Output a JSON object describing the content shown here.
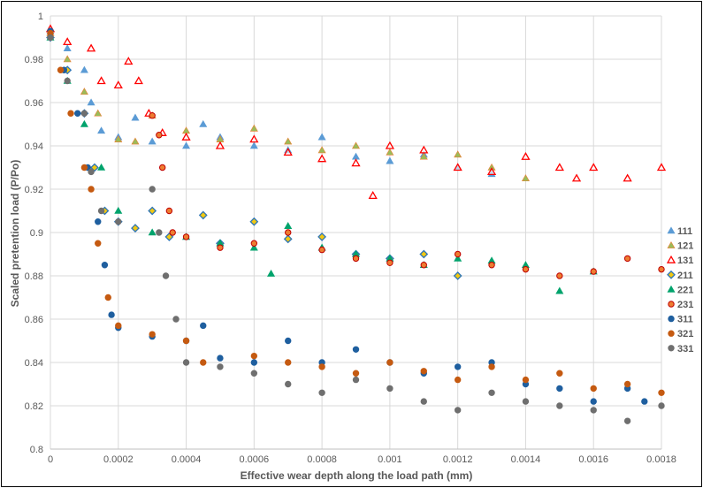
{
  "chart_data": {
    "type": "scatter",
    "xlabel": "Effective wear depth along the load path (mm)",
    "ylabel": "Scaled pretention load (P/Po)",
    "xlim": [
      0,
      0.0018
    ],
    "ylim": [
      0.8,
      1
    ],
    "xticks": [
      "0",
      "0.0002",
      "0.0004",
      "0.0006",
      "0.0008",
      "0.001",
      "0.0012",
      "0.0014",
      "0.0016",
      "0.0018"
    ],
    "yticks": [
      "0.8",
      "0.82",
      "0.84",
      "0.86",
      "0.88",
      "0.9",
      "0.92",
      "0.94",
      "0.96",
      "0.98",
      "1"
    ],
    "grid": true,
    "legend": "right",
    "series": [
      {
        "name": "111",
        "marker": "triangle",
        "color": "#5b9bd5",
        "points": [
          [
            0,
            0.993
          ],
          [
            5e-05,
            0.985
          ],
          [
            0.0001,
            0.975
          ],
          [
            0.00012,
            0.96
          ],
          [
            0.00015,
            0.947
          ],
          [
            0.0002,
            0.944
          ],
          [
            0.00025,
            0.953
          ],
          [
            0.0003,
            0.942
          ],
          [
            0.0004,
            0.94
          ],
          [
            0.00045,
            0.95
          ],
          [
            0.0005,
            0.944
          ],
          [
            0.0006,
            0.94
          ],
          [
            0.0007,
            0.938
          ],
          [
            0.0008,
            0.944
          ],
          [
            0.0009,
            0.935
          ],
          [
            0.001,
            0.933
          ],
          [
            0.0011,
            0.936
          ],
          [
            0.0012,
            0.93
          ],
          [
            0.0013,
            0.927
          ]
        ]
      },
      {
        "name": "121",
        "marker": "triangle",
        "color": "#9bbb59",
        "stroke": "#ed7d31",
        "points": [
          [
            0,
            0.992
          ],
          [
            5e-05,
            0.98
          ],
          [
            0.0001,
            0.965
          ],
          [
            0.00014,
            0.955
          ],
          [
            0.0002,
            0.943
          ],
          [
            0.00025,
            0.942
          ],
          [
            0.0003,
            0.954
          ],
          [
            0.0004,
            0.947
          ],
          [
            0.0005,
            0.943
          ],
          [
            0.0006,
            0.948
          ],
          [
            0.0007,
            0.942
          ],
          [
            0.0008,
            0.938
          ],
          [
            0.0009,
            0.94
          ],
          [
            0.001,
            0.937
          ],
          [
            0.0011,
            0.935
          ],
          [
            0.0012,
            0.936
          ],
          [
            0.0013,
            0.93
          ],
          [
            0.0014,
            0.925
          ]
        ]
      },
      {
        "name": "131",
        "marker": "triangle-open",
        "color": "#ff0000",
        "points": [
          [
            0,
            0.994
          ],
          [
            5e-05,
            0.988
          ],
          [
            0.00012,
            0.985
          ],
          [
            0.00015,
            0.97
          ],
          [
            0.0002,
            0.968
          ],
          [
            0.00023,
            0.979
          ],
          [
            0.00026,
            0.97
          ],
          [
            0.00029,
            0.955
          ],
          [
            0.00033,
            0.946
          ],
          [
            0.0004,
            0.944
          ],
          [
            0.0005,
            0.94
          ],
          [
            0.0006,
            0.943
          ],
          [
            0.0007,
            0.937
          ],
          [
            0.0008,
            0.934
          ],
          [
            0.0009,
            0.932
          ],
          [
            0.00095,
            0.917
          ],
          [
            0.001,
            0.94
          ],
          [
            0.0011,
            0.938
          ],
          [
            0.0012,
            0.93
          ],
          [
            0.0013,
            0.928
          ],
          [
            0.0014,
            0.935
          ],
          [
            0.0015,
            0.93
          ],
          [
            0.00155,
            0.925
          ],
          [
            0.0016,
            0.93
          ],
          [
            0.0017,
            0.925
          ],
          [
            0.0018,
            0.93
          ]
        ]
      },
      {
        "name": "211",
        "marker": "diamond",
        "color": "#f2c811",
        "stroke": "#2e75b6",
        "points": [
          [
            0,
            0.99
          ],
          [
            5e-05,
            0.975
          ],
          [
            0.0001,
            0.955
          ],
          [
            0.00013,
            0.93
          ],
          [
            0.00016,
            0.91
          ],
          [
            0.0002,
            0.905
          ],
          [
            0.00025,
            0.902
          ],
          [
            0.0003,
            0.91
          ],
          [
            0.00035,
            0.898
          ],
          [
            0.00045,
            0.908
          ],
          [
            0.0005,
            0.895
          ],
          [
            0.0006,
            0.905
          ],
          [
            0.0007,
            0.897
          ],
          [
            0.0008,
            0.898
          ],
          [
            0.0009,
            0.89
          ],
          [
            0.001,
            0.888
          ],
          [
            0.0011,
            0.89
          ],
          [
            0.0012,
            0.88
          ]
        ]
      },
      {
        "name": "221",
        "marker": "triangle",
        "color": "#00a36c",
        "points": [
          [
            0,
            0.99
          ],
          [
            5e-05,
            0.97
          ],
          [
            0.0001,
            0.95
          ],
          [
            0.00015,
            0.93
          ],
          [
            0.0002,
            0.91
          ],
          [
            0.0003,
            0.9
          ],
          [
            0.0004,
            0.898
          ],
          [
            0.0005,
            0.895
          ],
          [
            0.0006,
            0.893
          ],
          [
            0.00065,
            0.881
          ],
          [
            0.0007,
            0.903
          ],
          [
            0.0008,
            0.893
          ],
          [
            0.0009,
            0.89
          ],
          [
            0.001,
            0.888
          ],
          [
            0.0011,
            0.885
          ],
          [
            0.0012,
            0.888
          ],
          [
            0.0013,
            0.887
          ],
          [
            0.0014,
            0.885
          ],
          [
            0.0015,
            0.873
          ],
          [
            0.0016,
            0.882
          ]
        ]
      },
      {
        "name": "231",
        "marker": "circle",
        "color": "#ed7d31",
        "stroke": "#c00000",
        "points": [
          [
            0.0003,
            0.954
          ],
          [
            0.00032,
            0.945
          ],
          [
            0.00033,
            0.93
          ],
          [
            0.00035,
            0.91
          ],
          [
            0.00036,
            0.9
          ],
          [
            0.0004,
            0.898
          ],
          [
            0.0005,
            0.893
          ],
          [
            0.0006,
            0.895
          ],
          [
            0.0007,
            0.9
          ],
          [
            0.0008,
            0.892
          ],
          [
            0.0009,
            0.888
          ],
          [
            0.001,
            0.886
          ],
          [
            0.0011,
            0.885
          ],
          [
            0.0012,
            0.89
          ],
          [
            0.0013,
            0.885
          ],
          [
            0.0014,
            0.883
          ],
          [
            0.0015,
            0.88
          ],
          [
            0.0016,
            0.882
          ],
          [
            0.0017,
            0.888
          ],
          [
            0.0018,
            0.883
          ]
        ]
      },
      {
        "name": "311",
        "marker": "circle",
        "color": "#1f5f9f",
        "points": [
          [
            0,
            0.993
          ],
          [
            4e-05,
            0.975
          ],
          [
            8e-05,
            0.955
          ],
          [
            0.00011,
            0.93
          ],
          [
            0.00014,
            0.905
          ],
          [
            0.00016,
            0.885
          ],
          [
            0.00018,
            0.862
          ],
          [
            0.0002,
            0.856
          ],
          [
            0.0003,
            0.852
          ],
          [
            0.0004,
            0.85
          ],
          [
            0.00045,
            0.857
          ],
          [
            0.0005,
            0.842
          ],
          [
            0.0006,
            0.84
          ],
          [
            0.0007,
            0.85
          ],
          [
            0.0008,
            0.84
          ],
          [
            0.0009,
            0.846
          ],
          [
            0.001,
            0.84
          ],
          [
            0.0011,
            0.835
          ],
          [
            0.0012,
            0.838
          ],
          [
            0.0013,
            0.84
          ],
          [
            0.0014,
            0.83
          ],
          [
            0.0015,
            0.828
          ],
          [
            0.0016,
            0.822
          ],
          [
            0.0017,
            0.828
          ],
          [
            0.00175,
            0.822
          ]
        ]
      },
      {
        "name": "321",
        "marker": "circle",
        "color": "#c55a11",
        "points": [
          [
            0,
            0.992
          ],
          [
            3e-05,
            0.975
          ],
          [
            6e-05,
            0.955
          ],
          [
            0.0001,
            0.93
          ],
          [
            0.00012,
            0.92
          ],
          [
            0.00014,
            0.895
          ],
          [
            0.00017,
            0.87
          ],
          [
            0.0002,
            0.857
          ],
          [
            0.0003,
            0.853
          ],
          [
            0.0004,
            0.85
          ],
          [
            0.00045,
            0.84
          ],
          [
            0.0006,
            0.843
          ],
          [
            0.0007,
            0.84
          ],
          [
            0.0008,
            0.838
          ],
          [
            0.0009,
            0.835
          ],
          [
            0.001,
            0.84
          ],
          [
            0.0011,
            0.836
          ],
          [
            0.0012,
            0.832
          ],
          [
            0.0013,
            0.838
          ],
          [
            0.0014,
            0.832
          ],
          [
            0.0015,
            0.835
          ],
          [
            0.0016,
            0.828
          ],
          [
            0.0017,
            0.83
          ],
          [
            0.0018,
            0.826
          ]
        ]
      },
      {
        "name": "331",
        "marker": "circle",
        "color": "#6f6f6f",
        "points": [
          [
            0,
            0.99
          ],
          [
            5e-05,
            0.97
          ],
          [
            0.0001,
            0.955
          ],
          [
            0.00012,
            0.928
          ],
          [
            0.00015,
            0.91
          ],
          [
            0.0002,
            0.905
          ],
          [
            0.0003,
            0.92
          ],
          [
            0.00032,
            0.9
          ],
          [
            0.00034,
            0.88
          ],
          [
            0.00037,
            0.86
          ],
          [
            0.0004,
            0.84
          ],
          [
            0.0005,
            0.838
          ],
          [
            0.0006,
            0.835
          ],
          [
            0.0007,
            0.83
          ],
          [
            0.0008,
            0.826
          ],
          [
            0.0009,
            0.832
          ],
          [
            0.001,
            0.828
          ],
          [
            0.0011,
            0.822
          ],
          [
            0.0012,
            0.818
          ],
          [
            0.0013,
            0.826
          ],
          [
            0.0014,
            0.822
          ],
          [
            0.0015,
            0.82
          ],
          [
            0.0016,
            0.818
          ],
          [
            0.0017,
            0.813
          ],
          [
            0.0018,
            0.82
          ]
        ]
      }
    ]
  }
}
